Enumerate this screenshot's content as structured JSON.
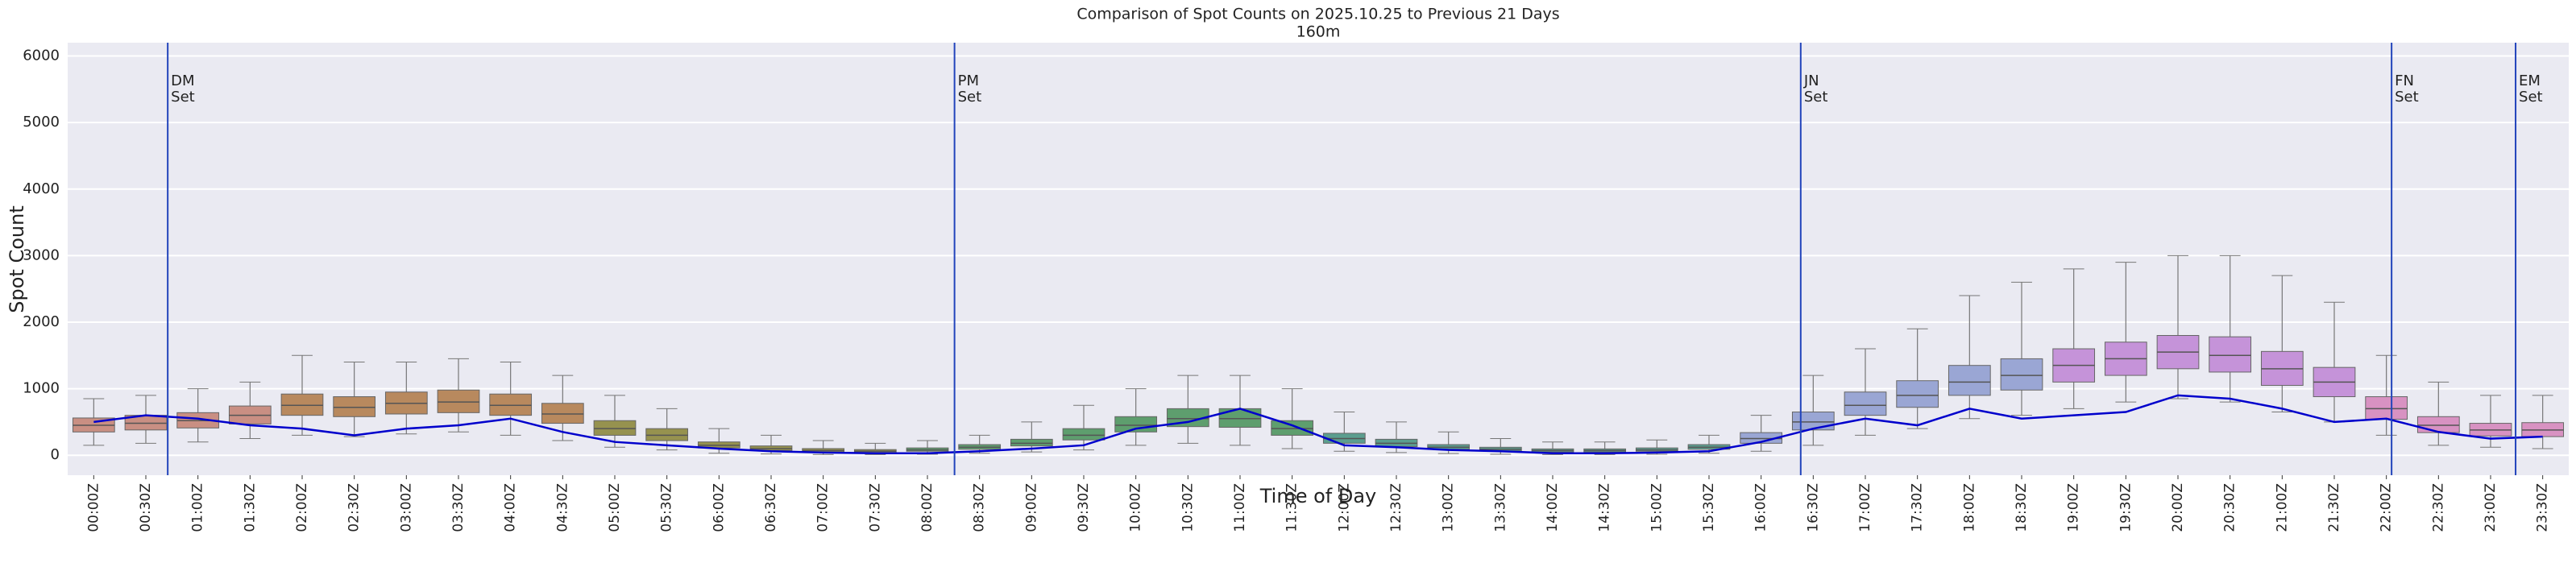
{
  "chart_data": {
    "type": "box",
    "title": "Comparison of Spot Counts on 2025.10.25 to Previous 21 Days",
    "subtitle": "160m",
    "x_label": "Time of Day",
    "y_label": "Spot Count",
    "categories": [
      "00:00Z",
      "00:30Z",
      "01:00Z",
      "01:30Z",
      "02:00Z",
      "02:30Z",
      "03:00Z",
      "03:30Z",
      "04:00Z",
      "04:30Z",
      "05:00Z",
      "05:30Z",
      "06:00Z",
      "06:30Z",
      "07:00Z",
      "07:30Z",
      "08:00Z",
      "08:30Z",
      "09:00Z",
      "09:30Z",
      "10:00Z",
      "10:30Z",
      "11:00Z",
      "11:30Z",
      "12:00Z",
      "12:30Z",
      "13:00Z",
      "13:30Z",
      "14:00Z",
      "14:30Z",
      "15:00Z",
      "15:30Z",
      "16:00Z",
      "16:30Z",
      "17:00Z",
      "17:30Z",
      "18:00Z",
      "18:30Z",
      "19:00Z",
      "19:30Z",
      "20:00Z",
      "20:30Z",
      "21:00Z",
      "21:30Z",
      "22:00Z",
      "22:30Z",
      "23:00Z",
      "23:30Z"
    ],
    "whislo": [
      150,
      180,
      200,
      250,
      300,
      280,
      320,
      350,
      300,
      220,
      120,
      80,
      30,
      20,
      10,
      10,
      15,
      30,
      50,
      80,
      150,
      180,
      150,
      100,
      60,
      40,
      25,
      15,
      10,
      10,
      15,
      30,
      60,
      150,
      300,
      400,
      550,
      600,
      700,
      800,
      850,
      800,
      650,
      500,
      300,
      150,
      120,
      100
    ],
    "q1": [
      350,
      380,
      410,
      470,
      600,
      580,
      620,
      640,
      600,
      480,
      300,
      220,
      110,
      70,
      50,
      40,
      60,
      90,
      140,
      230,
      350,
      430,
      420,
      300,
      180,
      130,
      90,
      65,
      50,
      50,
      60,
      90,
      180,
      380,
      600,
      720,
      900,
      980,
      1100,
      1200,
      1300,
      1250,
      1050,
      880,
      540,
      340,
      290,
      280
    ],
    "median": [
      450,
      480,
      520,
      600,
      750,
      720,
      780,
      800,
      750,
      620,
      400,
      300,
      150,
      100,
      70,
      60,
      80,
      120,
      180,
      300,
      450,
      550,
      550,
      400,
      250,
      180,
      120,
      90,
      70,
      70,
      80,
      120,
      250,
      500,
      750,
      900,
      1100,
      1200,
      1350,
      1450,
      1550,
      1500,
      1300,
      1100,
      700,
      450,
      380,
      380
    ],
    "q3": [
      560,
      600,
      640,
      740,
      920,
      880,
      950,
      980,
      920,
      780,
      520,
      400,
      200,
      140,
      100,
      85,
      110,
      160,
      240,
      400,
      580,
      700,
      700,
      520,
      330,
      240,
      160,
      120,
      95,
      95,
      110,
      160,
      340,
      650,
      950,
      1120,
      1350,
      1450,
      1600,
      1700,
      1800,
      1780,
      1560,
      1320,
      880,
      580,
      480,
      490
    ],
    "whishi": [
      850,
      900,
      1000,
      1100,
      1500,
      1400,
      1400,
      1450,
      1400,
      1200,
      900,
      700,
      400,
      300,
      220,
      180,
      220,
      300,
      500,
      750,
      1000,
      1200,
      1200,
      1000,
      650,
      500,
      350,
      250,
      200,
      200,
      230,
      300,
      600,
      1200,
      1600,
      1900,
      2400,
      2600,
      2800,
      2900,
      3000,
      3000,
      2700,
      2300,
      1500,
      1100,
      900,
      900
    ],
    "colors": [
      "#c98f83",
      "#c98f83",
      "#c98f83",
      "#c98f83",
      "#b8895e",
      "#b8895e",
      "#b8895e",
      "#b8895e",
      "#b8895e",
      "#b8895e",
      "#96924f",
      "#96924f",
      "#96924f",
      "#96924f",
      "#96924f",
      "#96924f",
      "#5e9e6e",
      "#5e9e6e",
      "#5e9e6e",
      "#5e9e6e",
      "#5e9e6e",
      "#5e9e6e",
      "#5e9e6e",
      "#5e9e6e",
      "#5b9e8f",
      "#5b9e8f",
      "#5b9e8f",
      "#5b9e8f",
      "#5b9e8f",
      "#5b9e8f",
      "#5b9e8f",
      "#5b9e8f",
      "#9aa6d4",
      "#9aa6d4",
      "#9aa6d4",
      "#9aa6d4",
      "#9aa6d4",
      "#9aa6d4",
      "#c593d9",
      "#c593d9",
      "#c593d9",
      "#c593d9",
      "#c593d9",
      "#c593d9",
      "#d892c2",
      "#d892c2",
      "#d892c2",
      "#d892c2"
    ],
    "line": {
      "color": "#0000cc",
      "values": [
        500,
        600,
        550,
        450,
        400,
        300,
        400,
        450,
        550,
        350,
        200,
        150,
        100,
        60,
        40,
        30,
        30,
        60,
        100,
        150,
        400,
        500,
        700,
        450,
        150,
        120,
        80,
        60,
        30,
        30,
        40,
        60,
        200,
        400,
        550,
        450,
        700,
        550,
        600,
        650,
        900,
        850,
        700,
        500,
        550,
        350,
        250,
        280
      ]
    },
    "annotations": [
      {
        "x": 1.42,
        "label": "DM\nSet"
      },
      {
        "x": 16.52,
        "label": "PM\nSet"
      },
      {
        "x": 32.76,
        "label": "JN\nSet"
      },
      {
        "x": 44.1,
        "label": "FN\nSet"
      },
      {
        "x": 46.48,
        "label": "EM\nSet"
      }
    ],
    "annotation_color": "#2244bb",
    "ylim": [
      -300,
      6200
    ],
    "yticks": [
      0,
      1000,
      2000,
      3000,
      4000,
      5000,
      6000
    ],
    "grid": true
  }
}
